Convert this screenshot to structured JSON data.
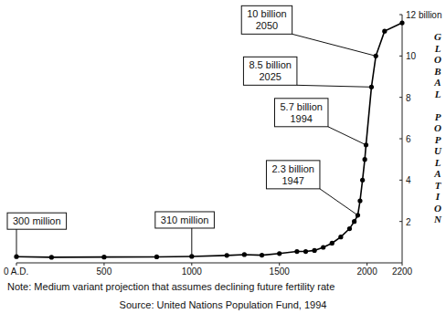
{
  "chart_data": {
    "type": "line",
    "x": [
      0,
      200,
      500,
      800,
      1000,
      1200,
      1300,
      1400,
      1500,
      1600,
      1650,
      1700,
      1750,
      1800,
      1850,
      1900,
      1927,
      1947,
      1960,
      1974,
      1987,
      1994,
      2025,
      2050,
      2100,
      2200
    ],
    "values": [
      0.3,
      0.27,
      0.28,
      0.29,
      0.31,
      0.36,
      0.4,
      0.37,
      0.45,
      0.55,
      0.55,
      0.6,
      0.75,
      0.95,
      1.25,
      1.65,
      2.0,
      2.3,
      3.0,
      4.0,
      5.0,
      5.7,
      8.5,
      10,
      11.2,
      11.6
    ],
    "color": "#000000",
    "marker": "circle",
    "xlim": [
      0,
      2200
    ],
    "ylim": [
      0,
      12
    ],
    "xticks": [
      {
        "value": 0,
        "label": "0 A.D."
      },
      500,
      1000,
      1500,
      2000,
      2200
    ],
    "yticks": [
      2,
      4,
      6,
      8,
      10,
      {
        "value": 12,
        "label": "12 billion"
      }
    ],
    "y_label": "GLOBAL POPULATION",
    "annotations": [
      {
        "lines": [
          "300 million"
        ],
        "x": 0,
        "y": 0.3
      },
      {
        "lines": [
          "310 million"
        ],
        "x": 1000,
        "y": 0.31
      },
      {
        "lines": [
          "2.3 billion",
          "1947"
        ],
        "x": 1947,
        "y": 2.3
      },
      {
        "lines": [
          "5.7 billion",
          "1994"
        ],
        "x": 1994,
        "y": 5.7
      },
      {
        "lines": [
          "8.5 billion",
          "2025"
        ],
        "x": 2025,
        "y": 8.5
      },
      {
        "lines": [
          "10 billion",
          "2050"
        ],
        "x": 2050,
        "y": 10
      }
    ],
    "note": "Note: Medium variant projection that assumes declining future fertility rate",
    "source": "Source: United Nations Population Fund, 1994"
  }
}
